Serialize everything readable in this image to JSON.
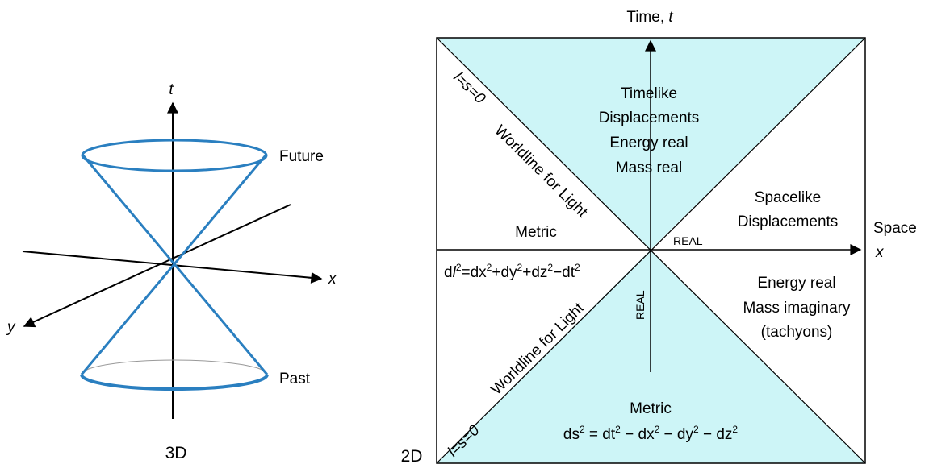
{
  "left_3d": {
    "axis_t": "t",
    "axis_x": "x",
    "axis_y": "y",
    "future": "Future",
    "past": "Past",
    "caption": "3D"
  },
  "right_2d": {
    "caption": "2D",
    "time_axis": {
      "text": "Time, ",
      "var": "t"
    },
    "space_axis": {
      "line1": "Space",
      "line2": "x"
    },
    "timelike": [
      "Timelike",
      "Displacements",
      "Energy real",
      "Mass real"
    ],
    "spacelike": [
      "Spacelike",
      "Displacements"
    ],
    "tachyon": [
      "Energy real",
      "Mass imaginary",
      "(tachyons)"
    ],
    "metric_left": "Metric",
    "metric_left_eq": {
      "p1": "d",
      "l": "l",
      "s1": "2",
      "p2": "=dx",
      "s2": "2",
      "p3": "+dy",
      "s3": "2",
      "p4": "+dz",
      "s4": "2",
      "p5": "−dt",
      "s5": "2"
    },
    "metric_bottom": "Metric",
    "metric_bottom_eq": {
      "p1": "ds",
      "s1": "2",
      "p2": " = dt",
      "s2": "2",
      "p3": " − dx",
      "s3": "2",
      "p4": " − dy",
      "s4": "2",
      "p5": " − dz",
      "s5": "2"
    },
    "real_h": "REAL",
    "real_v": "REAL",
    "worldline_upper": "Worldline for Light",
    "worldline_lower": "Worldline for Light",
    "null_upper": "l=s=0",
    "null_lower": "l=s=0"
  },
  "colors": {
    "cone": "#2a7fc0",
    "fill": "#cdf5f7",
    "axis": "#000000",
    "past_back": "#999999"
  }
}
